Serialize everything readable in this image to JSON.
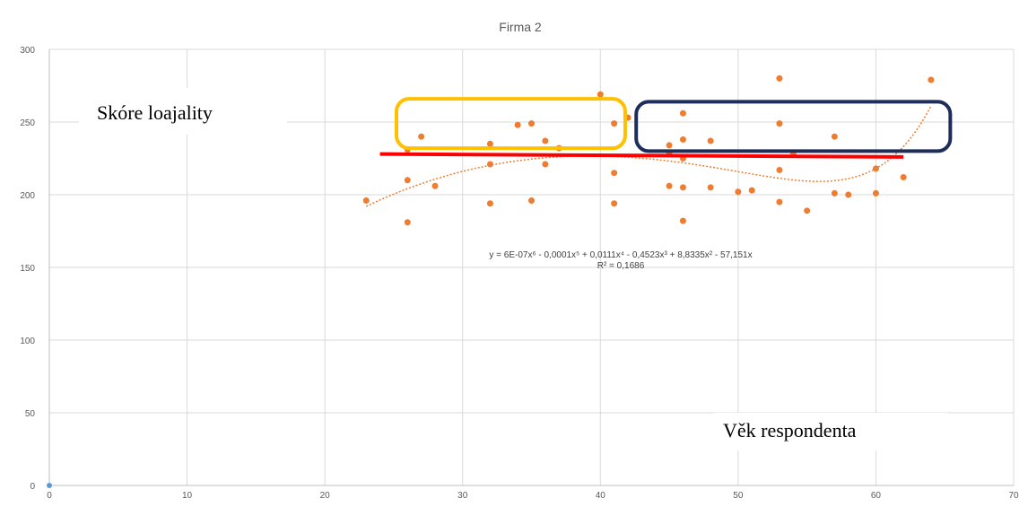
{
  "chart_data": {
    "type": "scatter",
    "title": "Firma 2",
    "xlabel": "Věk respondenta",
    "ylabel": "Skóre loajality",
    "xlim": [
      0,
      70
    ],
    "ylim": [
      0,
      300
    ],
    "x_ticks": [
      "0",
      "10",
      "20",
      "30",
      "40",
      "50",
      "60",
      "70"
    ],
    "y_ticks": [
      "0",
      "50",
      "100",
      "150",
      "200",
      "250",
      "300"
    ],
    "grid": true,
    "series": [
      {
        "color": "#ed7d31",
        "points": [
          [
            23,
            196
          ],
          [
            26,
            181
          ],
          [
            26,
            210
          ],
          [
            26,
            231
          ],
          [
            27,
            240
          ],
          [
            28,
            206
          ],
          [
            32,
            194
          ],
          [
            32,
            221
          ],
          [
            32,
            235
          ],
          [
            34,
            248
          ],
          [
            35,
            249
          ],
          [
            35,
            196
          ],
          [
            36,
            237
          ],
          [
            36,
            221
          ],
          [
            37,
            232
          ],
          [
            40,
            269
          ],
          [
            41,
            249
          ],
          [
            41,
            215
          ],
          [
            41,
            194
          ],
          [
            42,
            253
          ],
          [
            45,
            234
          ],
          [
            45,
            229
          ],
          [
            45,
            206
          ],
          [
            46,
            256
          ],
          [
            46,
            238
          ],
          [
            46,
            225
          ],
          [
            46,
            205
          ],
          [
            46,
            182
          ],
          [
            48,
            237
          ],
          [
            48,
            205
          ],
          [
            50,
            202
          ],
          [
            51,
            203
          ],
          [
            53,
            280
          ],
          [
            53,
            249
          ],
          [
            53,
            217
          ],
          [
            53,
            195
          ],
          [
            54,
            228
          ],
          [
            55,
            189
          ],
          [
            57,
            240
          ],
          [
            57,
            201
          ],
          [
            58,
            200
          ],
          [
            60,
            218
          ],
          [
            60,
            201
          ],
          [
            62,
            212
          ],
          [
            64,
            279
          ]
        ]
      },
      {
        "color": "#5b9bd5",
        "points": [
          [
            0,
            0
          ]
        ]
      }
    ],
    "trendline": {
      "type": "polynomial",
      "order": 6,
      "color": "#ed7d31",
      "x_range": [
        23,
        64
      ],
      "equation": "y = 6E-07x⁶ - 0,0001x⁵ + 0,0111x⁴ - 0,4523x³ + 8,8335x² - 57,151x",
      "r_squared": "R² = 0,1686"
    },
    "annotations": {
      "red_line": {
        "color": "#ff0000",
        "x": [
          24,
          62
        ],
        "y": [
          228,
          226
        ]
      },
      "yellow_box": {
        "color": "#ffc000",
        "x": [
          25.2,
          41.8
        ],
        "y": [
          232,
          266
        ]
      },
      "navy_box": {
        "color": "#1f2d5a",
        "x": [
          42.6,
          65.4
        ],
        "y": [
          230,
          264
        ]
      }
    }
  }
}
